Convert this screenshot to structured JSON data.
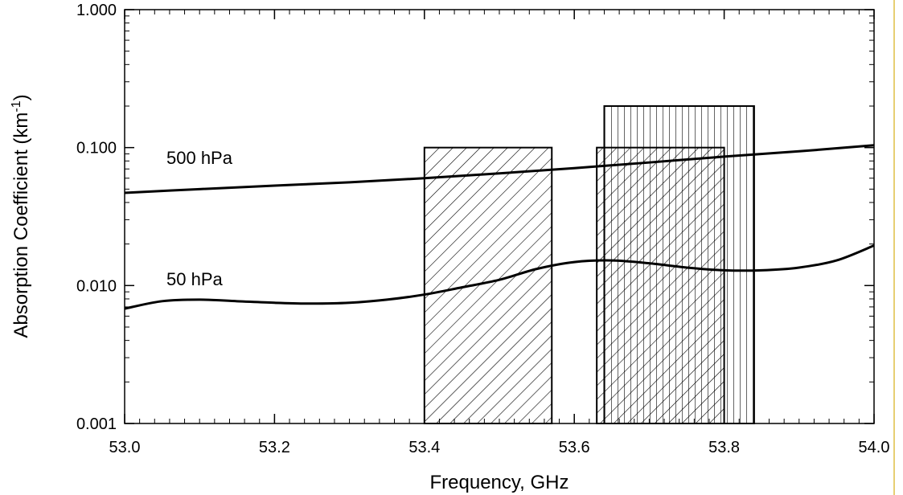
{
  "chart_data": {
    "type": "line",
    "x_axis": {
      "label": "Frequency, GHz",
      "range": [
        53.0,
        54.0
      ],
      "ticks": [
        53.0,
        53.2,
        53.4,
        53.6,
        53.8,
        54.0
      ],
      "tick_labels": [
        "53.0",
        "53.2",
        "53.4",
        "53.6",
        "53.8",
        "54.0"
      ]
    },
    "y_axis": {
      "label_main": "Absorption Coefficient (km",
      "label_sup": "-1",
      "label_close": ")",
      "scale": "log",
      "range": [
        0.001,
        1.0
      ],
      "ticks": [
        0.001,
        0.01,
        0.1,
        1.0
      ],
      "tick_labels": [
        "0.001",
        "0.010",
        "0.100",
        "1.000"
      ]
    },
    "grid": false,
    "series": [
      {
        "name": "500 hPa",
        "points": [
          [
            53.0,
            0.047
          ],
          [
            53.1,
            0.05
          ],
          [
            53.2,
            0.053
          ],
          [
            53.3,
            0.056
          ],
          [
            53.4,
            0.06
          ],
          [
            53.5,
            0.065
          ],
          [
            53.6,
            0.071
          ],
          [
            53.7,
            0.078
          ],
          [
            53.8,
            0.086
          ],
          [
            53.9,
            0.094
          ],
          [
            54.0,
            0.104
          ]
        ]
      },
      {
        "name": "50 hPa",
        "points": [
          [
            53.0,
            0.0068
          ],
          [
            53.05,
            0.0077
          ],
          [
            53.1,
            0.0079
          ],
          [
            53.15,
            0.0077
          ],
          [
            53.2,
            0.0075
          ],
          [
            53.25,
            0.0074
          ],
          [
            53.3,
            0.0075
          ],
          [
            53.35,
            0.0079
          ],
          [
            53.4,
            0.0086
          ],
          [
            53.45,
            0.0097
          ],
          [
            53.5,
            0.011
          ],
          [
            53.55,
            0.0132
          ],
          [
            53.6,
            0.0148
          ],
          [
            53.65,
            0.0152
          ],
          [
            53.7,
            0.0145
          ],
          [
            53.75,
            0.0135
          ],
          [
            53.8,
            0.0129
          ],
          [
            53.85,
            0.0129
          ],
          [
            53.9,
            0.0135
          ],
          [
            53.95,
            0.0152
          ],
          [
            54.0,
            0.0195
          ]
        ]
      }
    ],
    "bands": [
      {
        "x_start": 53.4,
        "x_end": 53.57,
        "top": 0.1,
        "pattern": "diagonal"
      },
      {
        "x_start": 53.63,
        "x_end": 53.8,
        "top": 0.1,
        "pattern": "diagonal"
      },
      {
        "x_start": 53.64,
        "x_end": 53.84,
        "top": 0.2,
        "pattern": "vertical"
      }
    ]
  }
}
